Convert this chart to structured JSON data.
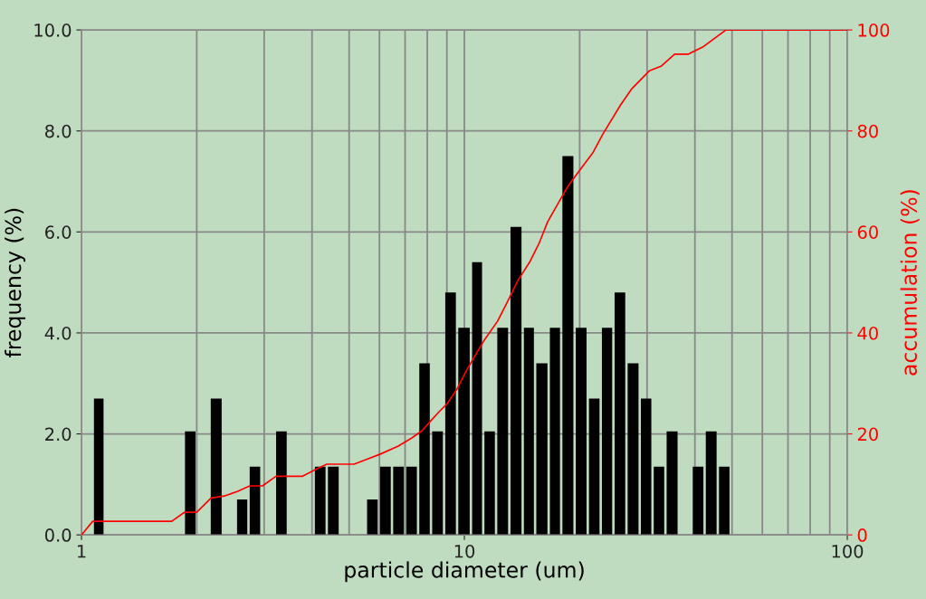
{
  "chart_data": {
    "type": "histogram",
    "xlabel": "particle diameter (um)",
    "ylabel": "frequency (%)",
    "y2label": "accumulation (%)",
    "bins": [
      1.07,
      1.15,
      1.85,
      2.0,
      2.16,
      2.34,
      2.53,
      2.73,
      2.95,
      3.2,
      3.46,
      4.04,
      4.37,
      4.73,
      5.53,
      5.98,
      6.47,
      7.0,
      7.57,
      8.18,
      8.85,
      9.57,
      10.4,
      11.2,
      12.1,
      13.1,
      14.2,
      15.3,
      16.6,
      17.9,
      19.4,
      21.0,
      22.7,
      24.5,
      26.5,
      28.7,
      31.0,
      33.5,
      36.3,
      39.2,
      42.4,
      45.9,
      49.6
    ],
    "values": [
      2.7,
      0,
      2.05,
      0,
      2.7,
      0,
      0.7,
      1.35,
      0,
      2.05,
      0,
      1.35,
      1.35,
      0,
      0.7,
      1.35,
      1.35,
      1.35,
      3.4,
      2.05,
      4.8,
      4.1,
      5.4,
      2.05,
      4.1,
      6.1,
      4.1,
      3.4,
      4.1,
      7.5,
      4.1,
      2.7,
      4.1,
      4.8,
      3.4,
      2.7,
      1.35,
      2.05,
      0,
      1.35,
      2.05,
      1.35
    ],
    "color": "#000000",
    "series": [
      {
        "type": "line",
        "axis": "y2",
        "color": "#ff0000",
        "x": [
          1,
          1.07,
          1.72,
          1.86,
          2.0,
          2.18,
          2.36,
          2.55,
          2.75,
          2.97,
          3.22,
          3.77,
          4.07,
          4.37,
          5.15,
          5.53,
          6.03,
          6.72,
          7.29,
          7.74,
          8.13,
          8.59,
          9.02,
          9.57,
          10.1,
          10.7,
          11.3,
          12.2,
          12.9,
          13.8,
          14.8,
          15.7,
          16.5,
          17.7,
          18.7,
          20.0,
          21.7,
          23.0,
          25.6,
          27.4,
          30.4,
          32.6,
          35.4,
          38.4,
          41.9,
          48.2,
          100
        ],
        "values": [
          0,
          2.7,
          2.7,
          4.5,
          4.5,
          7.3,
          7.7,
          8.6,
          9.7,
          9.7,
          11.6,
          11.6,
          12.9,
          14.0,
          14.0,
          14.9,
          16.0,
          17.6,
          19.2,
          20.6,
          22.4,
          24.4,
          26.0,
          28.9,
          32.4,
          35.7,
          38.7,
          42.3,
          45.9,
          50.4,
          54.0,
          57.9,
          62.0,
          66.1,
          69.2,
          72.2,
          75.8,
          79.4,
          85.2,
          88.4,
          91.9,
          92.8,
          95.2,
          95.2,
          96.6,
          100,
          100
        ]
      }
    ],
    "log": "x",
    "xlim": [
      1,
      100
    ],
    "xticks": [
      1,
      10,
      100
    ],
    "ylim": [
      0,
      10
    ],
    "yticks": [
      {
        "value": 0,
        "label": "0.0"
      },
      {
        "value": 2,
        "label": "2.0"
      },
      {
        "value": 4,
        "label": "4.0"
      },
      {
        "value": 6,
        "label": "6.0"
      },
      {
        "value": 8,
        "label": "8.0"
      },
      {
        "value": 10,
        "label": "10.0"
      }
    ],
    "y2lim": [
      0,
      100
    ],
    "y2ticks": [
      0,
      20,
      40,
      60,
      80,
      100
    ],
    "grid": true
  }
}
